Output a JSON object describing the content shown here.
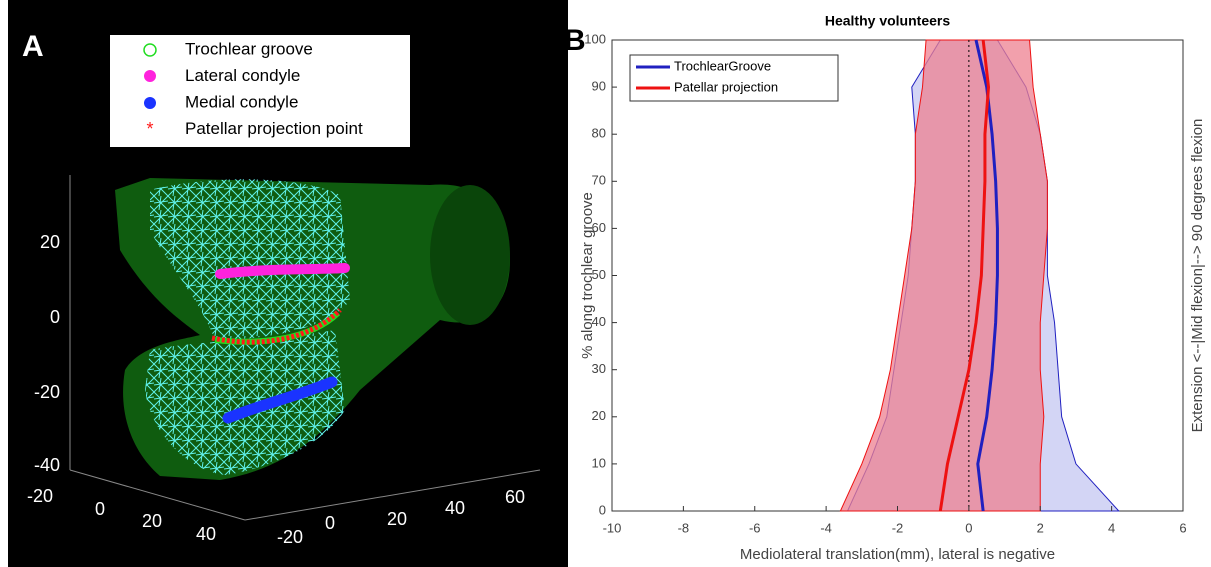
{
  "figure_a": {
    "label": "A",
    "legend": [
      "Trochlear groove",
      "Lateral condyle",
      "Medial condyle",
      "Patellar projection point"
    ],
    "z_ticks": [
      "20",
      "0",
      "-20",
      "-40"
    ],
    "x_ticks": [
      "-20",
      "0",
      "20",
      "40"
    ],
    "y_ticks": [
      "-20",
      "0",
      "20",
      "40",
      "60"
    ]
  },
  "chart_data": {
    "type": "line",
    "label": "B",
    "title": "Healthy volunteers",
    "xlabel": "Mediolateral translation(mm), lateral is negative",
    "ylabel": "% along trochlear groove",
    "y2label": "Extension <--|Mid flexion|--> 90 degrees flexion",
    "xlim": [
      -10,
      6
    ],
    "xticks": [
      -10,
      -8,
      -6,
      -4,
      -2,
      0,
      2,
      4,
      6
    ],
    "ylim": [
      0,
      100
    ],
    "yticks": [
      0,
      10,
      20,
      30,
      40,
      50,
      60,
      70,
      80,
      90,
      100
    ],
    "legend": "upper left",
    "y": [
      0,
      10,
      20,
      30,
      40,
      50,
      60,
      70,
      80,
      90,
      100
    ],
    "series": [
      {
        "name": "TrochlearGroove",
        "color": "#2020c0",
        "band_color": "#c8caf2",
        "values": [
          0.4,
          0.25,
          0.5,
          0.65,
          0.75,
          0.8,
          0.8,
          0.75,
          0.65,
          0.5,
          0.2
        ],
        "lower": [
          -3.4,
          -2.8,
          -2.3,
          -2.1,
          -1.9,
          -1.7,
          -1.6,
          -1.5,
          -1.5,
          -1.6,
          -0.8
        ],
        "upper": [
          4.2,
          3.0,
          2.6,
          2.5,
          2.4,
          2.2,
          2.2,
          2.2,
          2.0,
          1.6,
          0.8
        ]
      },
      {
        "name": "Patellar projection",
        "color": "#ee1111",
        "band_color": "#ee8090",
        "values": [
          -0.8,
          -0.6,
          -0.3,
          0,
          0.2,
          0.35,
          0.4,
          0.45,
          0.45,
          0.55,
          0.4
        ],
        "lower": [
          -3.6,
          -3.0,
          -2.5,
          -2.2,
          -2.0,
          -1.8,
          -1.6,
          -1.5,
          -1.5,
          -1.3,
          -1.2
        ],
        "upper": [
          2.0,
          2.0,
          2.1,
          2.0,
          2.0,
          2.1,
          2.2,
          2.2,
          2.0,
          1.8,
          1.7
        ]
      }
    ]
  }
}
